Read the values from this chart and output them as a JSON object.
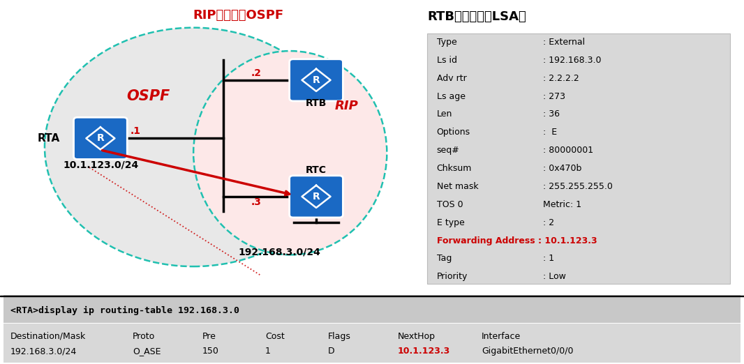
{
  "title_rip_ospf": "RIP重发布到OSPF",
  "label_ospf": "OSPF",
  "label_rip": "RIP",
  "label_rta": "RTA",
  "label_rtb": "RTB",
  "label_rtc": "RTC",
  "label_network1": "10.1.123.0/24",
  "label_network2": "192.168.3.0/24",
  "label_dot1": ".1",
  "label_dot2": ".2",
  "label_dot3": ".3",
  "lsa_title": "RTB产生的五类LSA：",
  "lsa_fields": [
    [
      "Type",
      ": External"
    ],
    [
      "Ls id",
      ": 192.168.3.0"
    ],
    [
      "Adv rtr",
      ": 2.2.2.2"
    ],
    [
      "Ls age",
      ": 273"
    ],
    [
      "Len",
      ": 36"
    ],
    [
      "Options",
      ":  E"
    ],
    [
      "seq#",
      ": 80000001"
    ],
    [
      "Chksum",
      ": 0x470b"
    ],
    [
      "Net mask",
      ": 255.255.255.0"
    ],
    [
      "TOS 0",
      "Metric: 1"
    ],
    [
      "E type",
      ": 2"
    ],
    [
      "Forwarding Address : 10.1.123.3",
      ""
    ],
    [
      "Tag",
      ": 1"
    ],
    [
      "Priority",
      ": Low"
    ]
  ],
  "lsa_highlight_row": 11,
  "cmd_text": "<RTA>display ip routing-table 192.168.3.0",
  "table_headers": [
    "Destination/Mask",
    "Proto",
    "Pre",
    "Cost",
    "Flags",
    "NextHop",
    "Interface"
  ],
  "table_row": [
    "192.168.3.0/24",
    "O_ASE",
    "150",
    "1",
    "D",
    "10.1.123.3",
    "GigabitEthernet0/0/0"
  ],
  "table_nexthop_col": 5,
  "bg_color": "#ffffff",
  "ospf_ellipse_color": "#20c0b0",
  "rip_ellipse_fill": "#fde8e8",
  "ospf_ellipse_fill": "#e8e8e8",
  "router_blue": "#1a69c4",
  "red_color": "#cc0000",
  "lsa_bg": "#d8d8d8",
  "cmd_bg": "#c8c8c8",
  "table_bg": "#d8d8d8"
}
